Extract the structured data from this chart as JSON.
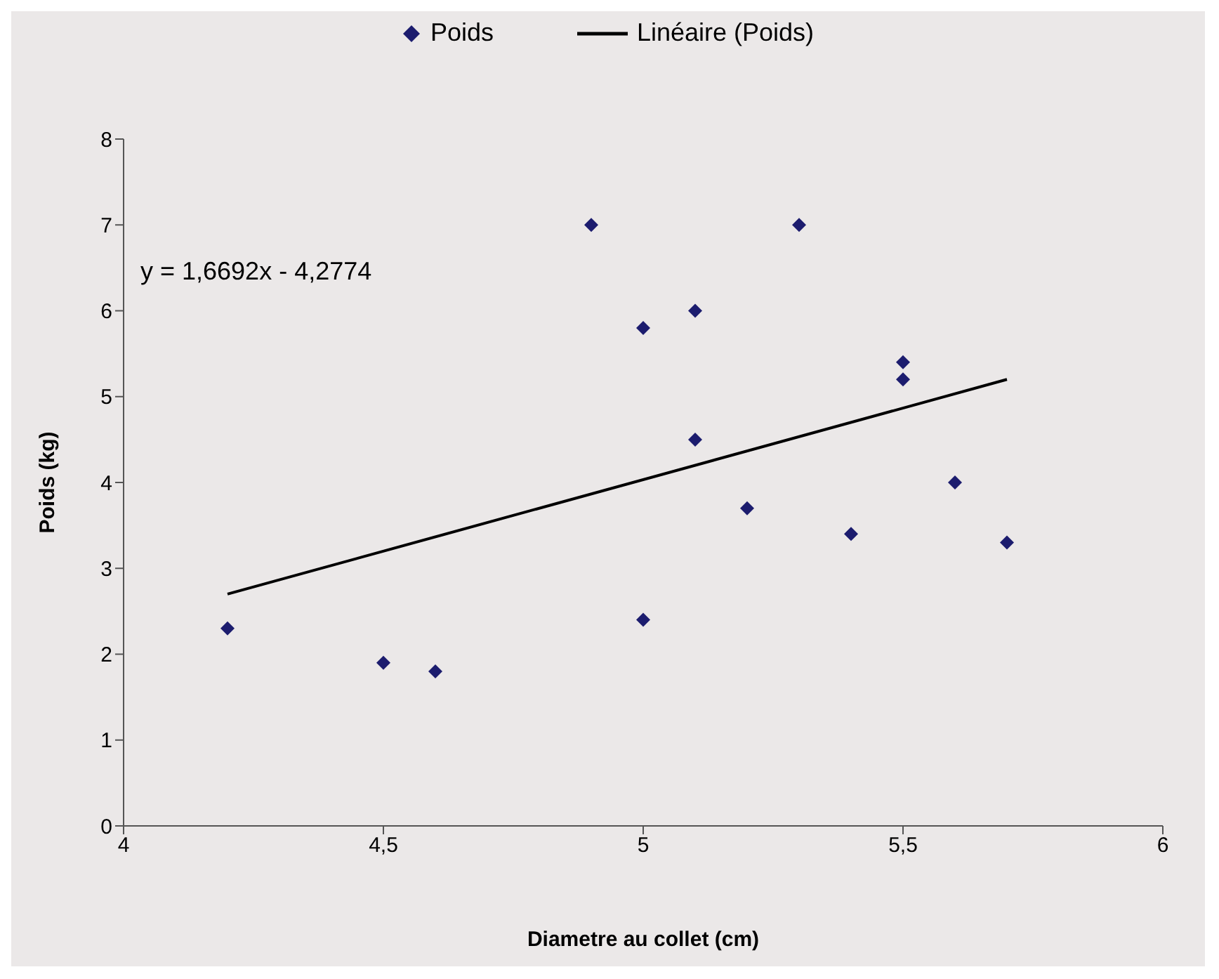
{
  "chart_data": {
    "type": "scatter",
    "xlabel": "Diametre au collet (cm)",
    "ylabel": "Poids (kg)",
    "xlim": [
      4,
      6
    ],
    "xticks": [
      4,
      {
        "value": 4.5,
        "label": "4,5"
      },
      5,
      {
        "value": 5.5,
        "label": "5,5"
      },
      6
    ],
    "ylim": [
      0,
      8
    ],
    "yticks": [
      0,
      1,
      2,
      3,
      4,
      5,
      6,
      7,
      8
    ],
    "grid": false,
    "legend": "top",
    "annotations": [
      "y = 1,6692x - 4,2774"
    ],
    "series": [
      {
        "name": "Poids",
        "marker": "diamond",
        "color": "#1c1c6e",
        "x": [
          4.2,
          4.5,
          4.6,
          4.9,
          5.0,
          5.0,
          5.1,
          5.1,
          5.2,
          5.3,
          5.4,
          5.5,
          5.5,
          5.6,
          5.7
        ],
        "values": [
          2.3,
          1.9,
          1.8,
          7.0,
          5.8,
          2.4,
          6.0,
          4.5,
          3.7,
          7.0,
          3.4,
          5.4,
          5.2,
          4.0,
          3.3
        ]
      },
      {
        "name": "Linéaire (Poids)",
        "type": "line",
        "marker": "none",
        "color": "#000000",
        "x": [
          4.2,
          5.7
        ],
        "values": [
          2.7,
          5.2
        ]
      }
    ]
  }
}
